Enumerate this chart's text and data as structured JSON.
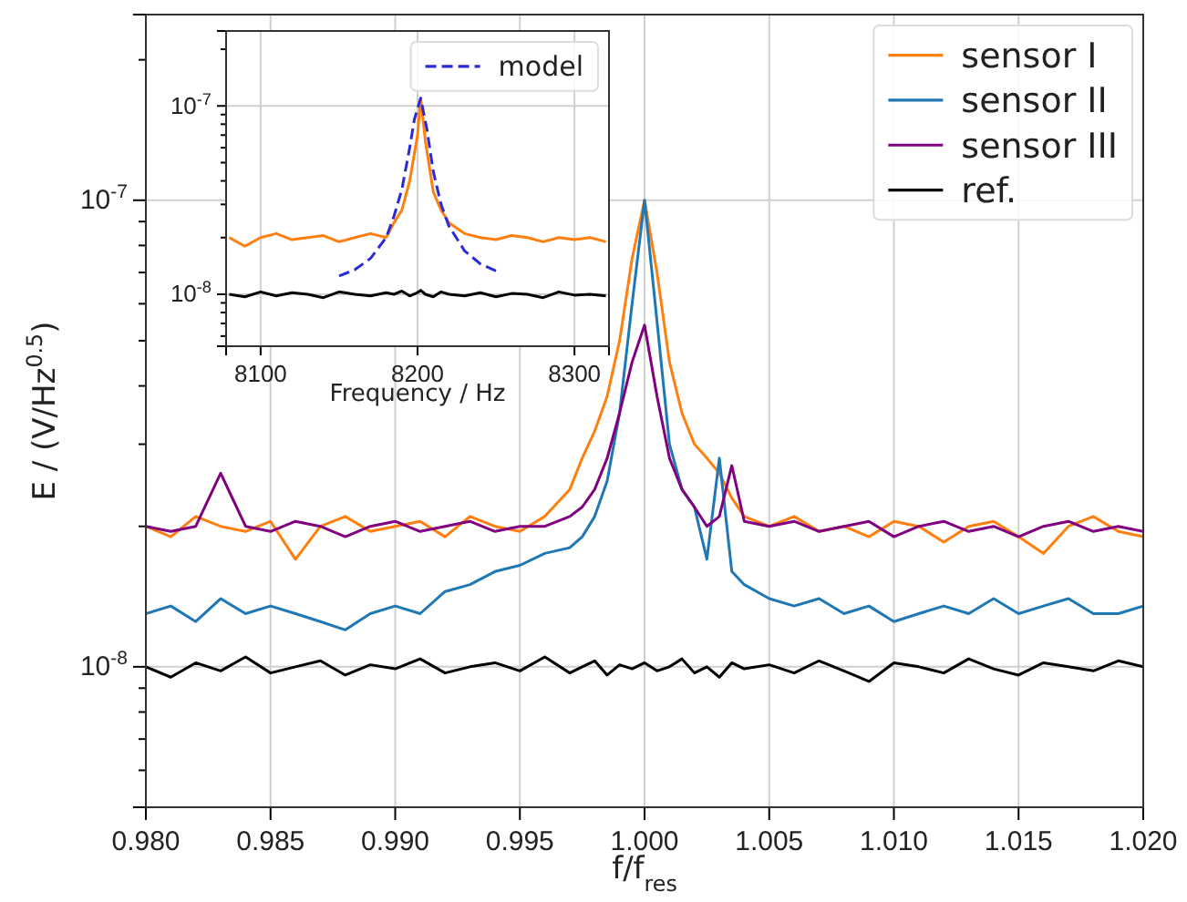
{
  "chart_data": [
    {
      "type": "line",
      "xlabel": "f/f$_{res}$",
      "ylabel": "E / (V/Hz$^{0.5}$)",
      "log": "y",
      "grid": true,
      "legend": "top right",
      "line_style": "solid",
      "marker": "none",
      "xlim": [
        0.98,
        1.02
      ],
      "xticks": [
        {
          "value": 0.98,
          "label": "0.980"
        },
        {
          "value": 0.985,
          "label": "0.985"
        },
        {
          "value": 0.99,
          "label": "0.990"
        },
        {
          "value": 0.995,
          "label": "0.995"
        },
        {
          "value": 1.0,
          "label": "1.000"
        },
        {
          "value": 1.005,
          "label": "1.005"
        },
        {
          "value": 1.01,
          "label": "1.010"
        },
        {
          "value": 1.015,
          "label": "1.015"
        },
        {
          "value": 1.02,
          "label": "1.020"
        }
      ],
      "ylim": [
        5e-09,
        2.5e-07
      ],
      "yticks": [
        {
          "value": 6e-09,
          "label": null
        },
        {
          "value": 7e-09,
          "label": null
        },
        {
          "value": 8e-09,
          "label": null
        },
        {
          "value": 9e-09,
          "label": null
        },
        {
          "value": 1e-08,
          "label": "10$^{-8}$"
        },
        {
          "value": 2e-08,
          "label": null
        },
        {
          "value": 3e-08,
          "label": null
        },
        {
          "value": 4e-08,
          "label": null
        },
        {
          "value": 5e-08,
          "label": null
        },
        {
          "value": 6e-08,
          "label": null
        },
        {
          "value": 7e-08,
          "label": null
        },
        {
          "value": 8e-08,
          "label": null
        },
        {
          "value": 9e-08,
          "label": null
        },
        {
          "value": 1e-07,
          "label": "10$^{-7}$"
        },
        {
          "value": 2e-07,
          "label": null
        }
      ],
      "x": [
        0.98,
        0.981,
        0.982,
        0.983,
        0.984,
        0.985,
        0.986,
        0.987,
        0.988,
        0.989,
        0.99,
        0.991,
        0.992,
        0.993,
        0.994,
        0.995,
        0.996,
        0.997,
        0.9975,
        0.998,
        0.9985,
        0.999,
        0.9995,
        1.0,
        1.0005,
        1.001,
        1.0015,
        1.002,
        1.0025,
        1.003,
        1.0035,
        1.004,
        1.005,
        1.006,
        1.007,
        1.008,
        1.009,
        1.01,
        1.011,
        1.012,
        1.013,
        1.014,
        1.015,
        1.016,
        1.017,
        1.018,
        1.019,
        1.02
      ],
      "series": [
        {
          "name": "sensor I",
          "color": "#ff7f0e",
          "values": [
            2e-08,
            1.9e-08,
            2.1e-08,
            2e-08,
            1.95e-08,
            2.05e-08,
            1.7e-08,
            2e-08,
            2.1e-08,
            1.95e-08,
            2e-08,
            2.05e-08,
            1.9e-08,
            2.1e-08,
            2e-08,
            1.95e-08,
            2.1e-08,
            2.4e-08,
            2.8e-08,
            3.2e-08,
            3.8e-08,
            5e-08,
            7.5e-08,
            1e-07,
            7e-08,
            4.5e-08,
            3.5e-08,
            3e-08,
            2.8e-08,
            2.6e-08,
            2.3e-08,
            2.1e-08,
            2e-08,
            2.1e-08,
            1.95e-08,
            2e-08,
            1.9e-08,
            2.05e-08,
            2e-08,
            1.85e-08,
            2e-08,
            2.05e-08,
            1.9e-08,
            1.75e-08,
            2e-08,
            2.1e-08,
            1.95e-08,
            1.9e-08
          ]
        },
        {
          "name": "sensor II",
          "color": "#1f77b4",
          "values": [
            1.3e-08,
            1.35e-08,
            1.25e-08,
            1.4e-08,
            1.3e-08,
            1.35e-08,
            1.3e-08,
            1.25e-08,
            1.2e-08,
            1.3e-08,
            1.35e-08,
            1.3e-08,
            1.45e-08,
            1.5e-08,
            1.6e-08,
            1.65e-08,
            1.75e-08,
            1.8e-08,
            1.9e-08,
            2.1e-08,
            2.5e-08,
            3.5e-08,
            6e-08,
            1e-07,
            5.5e-08,
            3e-08,
            2.4e-08,
            2.2e-08,
            1.7e-08,
            2.8e-08,
            1.6e-08,
            1.5e-08,
            1.4e-08,
            1.35e-08,
            1.4e-08,
            1.3e-08,
            1.35e-08,
            1.25e-08,
            1.3e-08,
            1.35e-08,
            1.3e-08,
            1.4e-08,
            1.3e-08,
            1.35e-08,
            1.4e-08,
            1.3e-08,
            1.3e-08,
            1.35e-08
          ]
        },
        {
          "name": "sensor III",
          "color": "#800080",
          "values": [
            2e-08,
            1.95e-08,
            2e-08,
            2.6e-08,
            2e-08,
            1.95e-08,
            2.05e-08,
            2e-08,
            1.9e-08,
            2e-08,
            2.05e-08,
            1.95e-08,
            2e-08,
            2.05e-08,
            1.95e-08,
            2e-08,
            2e-08,
            2.1e-08,
            2.2e-08,
            2.4e-08,
            2.8e-08,
            3.5e-08,
            4.5e-08,
            5.4e-08,
            3.8e-08,
            2.8e-08,
            2.4e-08,
            2.2e-08,
            2e-08,
            2.1e-08,
            2.7e-08,
            2.05e-08,
            2e-08,
            2.05e-08,
            1.95e-08,
            2e-08,
            2.05e-08,
            1.9e-08,
            2e-08,
            2.05e-08,
            1.95e-08,
            2e-08,
            1.9e-08,
            2e-08,
            2.05e-08,
            1.95e-08,
            2e-08,
            1.95e-08
          ]
        },
        {
          "name": "ref.",
          "color": "#000000",
          "values": [
            1e-08,
            9.5e-09,
            1.02e-08,
            9.8e-09,
            1.05e-08,
            9.7e-09,
            1e-08,
            1.03e-08,
            9.6e-09,
            1.01e-08,
            9.9e-09,
            1.04e-08,
            9.7e-09,
            1e-08,
            1.02e-08,
            9.8e-09,
            1.05e-08,
            9.7e-09,
            1e-08,
            1.03e-08,
            9.6e-09,
            1.01e-08,
            9.9e-09,
            1.02e-08,
            9.8e-09,
            1e-08,
            1.04e-08,
            9.7e-09,
            1e-08,
            9.5e-09,
            1.02e-08,
            9.9e-09,
            1.01e-08,
            9.7e-09,
            1.03e-08,
            9.8e-09,
            9.3e-09,
            1.02e-08,
            1e-08,
            9.7e-09,
            1.04e-08,
            9.9e-09,
            9.6e-09,
            1.02e-08,
            1e-08,
            9.8e-09,
            1.03e-08,
            1e-08
          ]
        }
      ]
    },
    {
      "type": "line",
      "xlabel": "Frequency / Hz",
      "log": "y",
      "grid": true,
      "legend": "top right",
      "marker": "none",
      "line_style": "solid",
      "xlim": [
        8078,
        8322
      ],
      "xticks": [
        8100,
        8200,
        8300
      ],
      "ylim": [
        5.3e-09,
        2.5e-07
      ],
      "yticks": [
        {
          "value": 6e-09,
          "label": null
        },
        {
          "value": 7e-09,
          "label": null
        },
        {
          "value": 8e-09,
          "label": null
        },
        {
          "value": 9e-09,
          "label": null
        },
        {
          "value": 1e-08,
          "label": "10$^{-8}$"
        },
        {
          "value": 2e-08,
          "label": null
        },
        {
          "value": 3e-08,
          "label": null
        },
        {
          "value": 4e-08,
          "label": null
        },
        {
          "value": 5e-08,
          "label": null
        },
        {
          "value": 6e-08,
          "label": null
        },
        {
          "value": 7e-08,
          "label": null
        },
        {
          "value": 8e-08,
          "label": null
        },
        {
          "value": 9e-08,
          "label": null
        },
        {
          "value": 1e-07,
          "label": "10$^{-7}$"
        },
        {
          "value": 2e-07,
          "label": null
        }
      ],
      "x": [
        8080,
        8090,
        8100,
        8110,
        8120,
        8130,
        8140,
        8150,
        8160,
        8170,
        8180,
        8185,
        8190,
        8195,
        8200,
        8202,
        8205,
        8210,
        8215,
        8220,
        8230,
        8240,
        8250,
        8260,
        8270,
        8280,
        8290,
        8300,
        8310,
        8320
      ],
      "series": [
        {
          "color": "#ff7f0e",
          "values": [
            2e-08,
            1.8e-08,
            2e-08,
            2.1e-08,
            1.95e-08,
            2e-08,
            2.05e-08,
            1.9e-08,
            2e-08,
            2.1e-08,
            2e-08,
            2.4e-08,
            2.8e-08,
            4e-08,
            7e-08,
            1.1e-07,
            6.5e-08,
            3.5e-08,
            2.8e-08,
            2.4e-08,
            2.1e-08,
            2e-08,
            1.95e-08,
            2.05e-08,
            2e-08,
            1.9e-08,
            2e-08,
            1.95e-08,
            2e-08,
            1.9e-08
          ]
        },
        {
          "color": "#000000",
          "values": [
            1e-08,
            9.7e-09,
            1.03e-08,
            9.8e-09,
            1.02e-08,
            1e-08,
            9.6e-09,
            1.03e-08,
            1e-08,
            9.8e-09,
            1.02e-08,
            1e-08,
            1.04e-08,
            9.8e-09,
            1.02e-08,
            1.05e-08,
            1e-08,
            9.7e-09,
            1.03e-08,
            1e-08,
            9.8e-09,
            1.02e-08,
            9.7e-09,
            1.01e-08,
            1e-08,
            9.6e-09,
            1.03e-08,
            9.9e-09,
            1e-08,
            9.8e-09
          ]
        },
        {
          "name": "model",
          "color": "#2b2bd6",
          "line_style": "dashed",
          "x": [
            8150,
            8160,
            8170,
            8180,
            8185,
            8190,
            8195,
            8198,
            8202,
            8206,
            8210,
            8215,
            8220,
            8230,
            8240,
            8250
          ],
          "values": [
            1.25e-08,
            1.35e-08,
            1.55e-08,
            2e-08,
            2.6e-08,
            3.6e-08,
            6e-08,
            8.5e-08,
            1.1e-07,
            7.5e-08,
            4.5e-08,
            3e-08,
            2.3e-08,
            1.7e-08,
            1.45e-08,
            1.33e-08
          ]
        }
      ]
    }
  ]
}
